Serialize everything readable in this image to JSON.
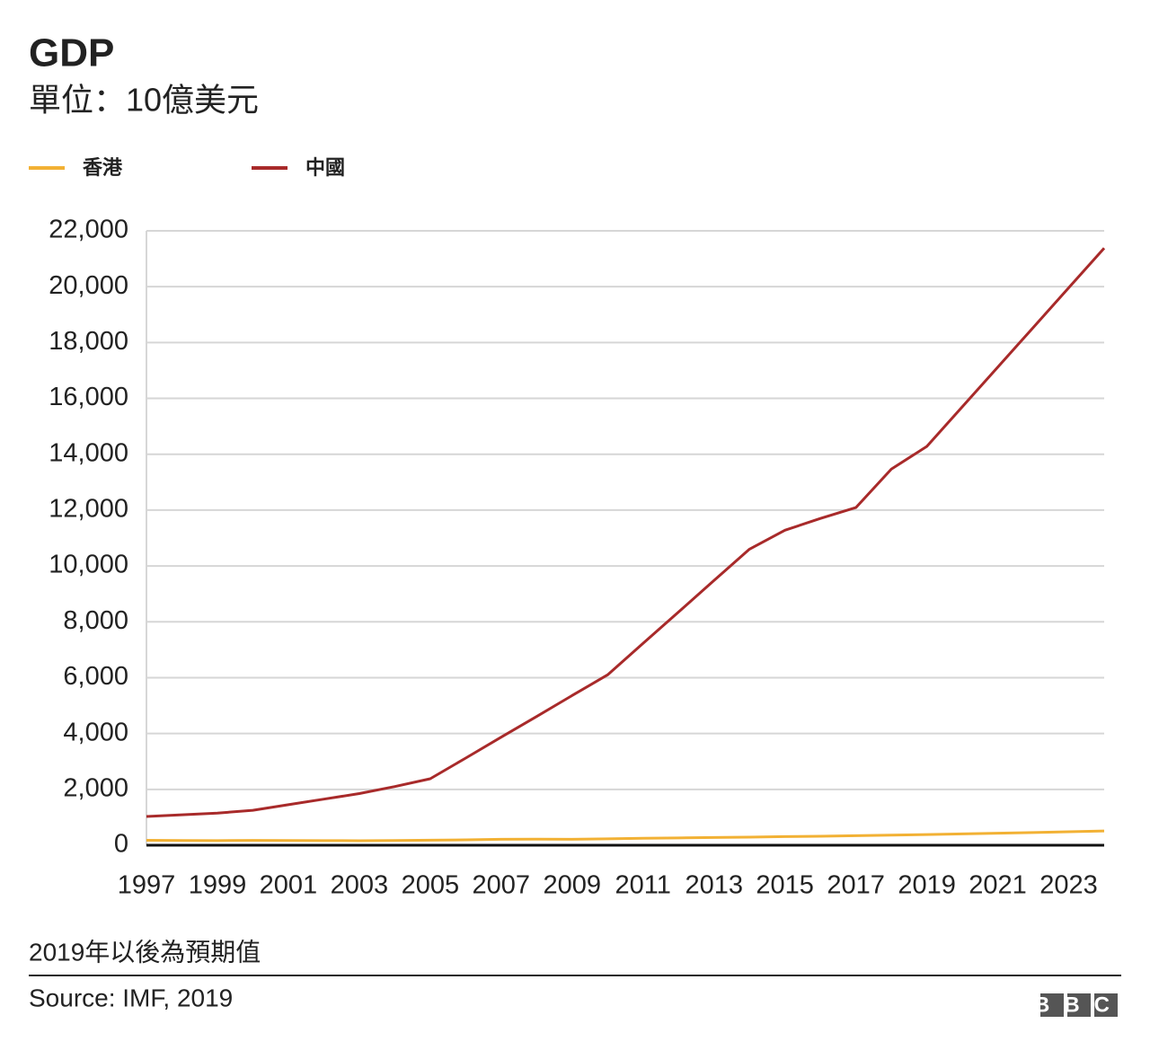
{
  "chart_data": {
    "type": "line",
    "title": "GDP",
    "subtitle": "單位：10億美元",
    "x": [
      1997,
      1998,
      1999,
      2000,
      2001,
      2002,
      2003,
      2004,
      2005,
      2006,
      2007,
      2008,
      2009,
      2010,
      2011,
      2012,
      2013,
      2014,
      2015,
      2016,
      2017,
      2018,
      2019,
      2020,
      2021,
      2022,
      2023,
      2024
    ],
    "series": [
      {
        "name": "香港",
        "color": "#f2b134",
        "values": [
          177,
          169,
          166,
          172,
          170,
          166,
          162,
          170,
          182,
          193,
          212,
          219,
          214,
          229,
          249,
          263,
          276,
          291,
          310,
          321,
          341,
          363,
          382,
          405,
          430,
          455,
          482,
          510
        ]
      },
      {
        "name": "中國",
        "color": "#a82a2a",
        "values": [
          1030,
          1090,
          1150,
          1250,
          1450,
          1650,
          1850,
          2100,
          2380,
          3120,
          3870,
          4610,
          5360,
          6100,
          7230,
          8350,
          9480,
          10600,
          11280,
          11700,
          12090,
          13470,
          14280,
          15700,
          17120,
          18540,
          19960,
          21380
        ]
      }
    ],
    "xlim": [
      1997,
      2024
    ],
    "xticks": [
      1997,
      1999,
      2001,
      2003,
      2005,
      2007,
      2009,
      2011,
      2013,
      2015,
      2017,
      2019,
      2021,
      2023
    ],
    "ylim": [
      0,
      22000
    ],
    "yticks": [
      0,
      {
        "value": 2000,
        "label": "2,000"
      },
      {
        "value": 4000,
        "label": "4,000"
      },
      {
        "value": 6000,
        "label": "6,000"
      },
      {
        "value": 8000,
        "label": "8,000"
      },
      {
        "value": 10000,
        "label": "10,000"
      },
      {
        "value": 12000,
        "label": "12,000"
      },
      {
        "value": 14000,
        "label": "14,000"
      },
      {
        "value": 16000,
        "label": "16,000"
      },
      {
        "value": 18000,
        "label": "18,000"
      },
      {
        "value": 20000,
        "label": "20,000"
      },
      {
        "value": 22000,
        "label": "22,000"
      }
    ],
    "grid": true,
    "note": "2019年以後為預期值",
    "source": "Source: IMF, 2019",
    "logo": "BBC"
  }
}
